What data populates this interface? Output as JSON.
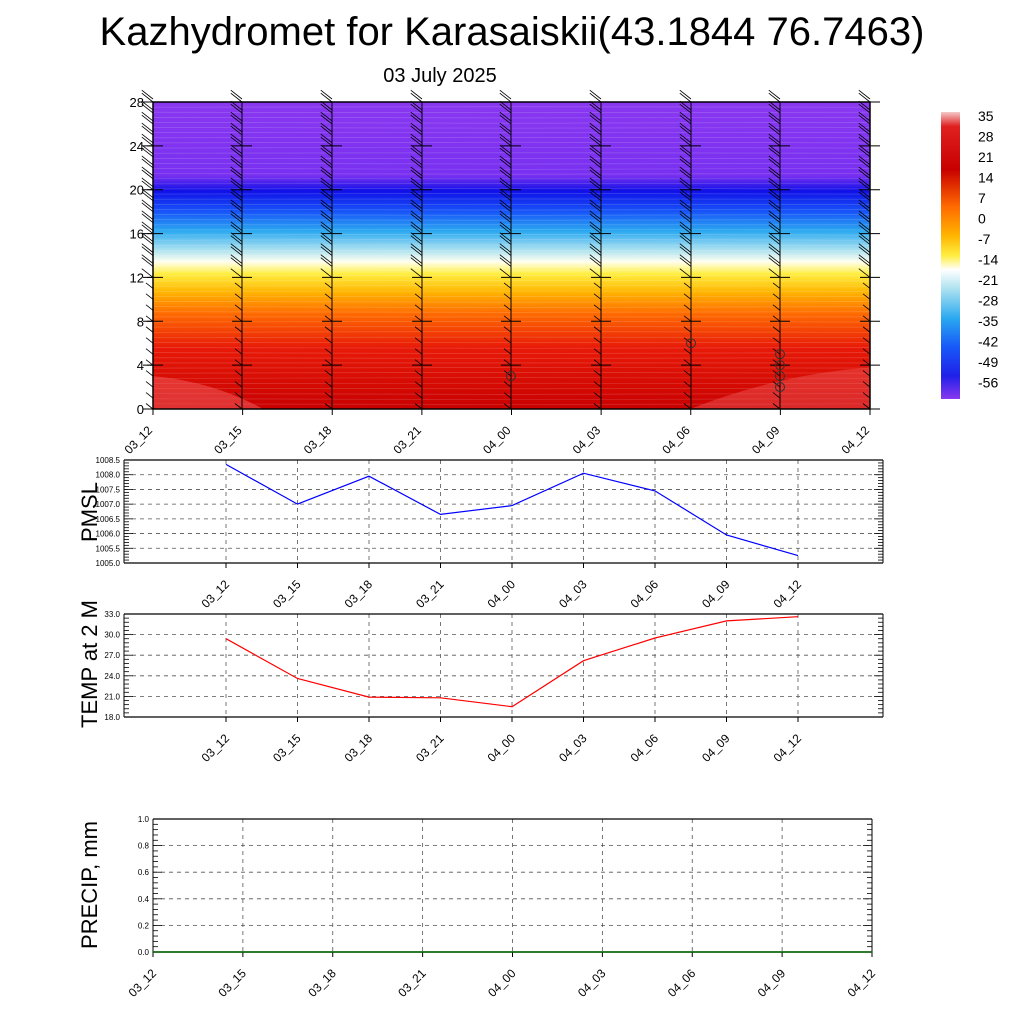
{
  "title": "Kazhydromet for Karasaiskii(43.1844 76.7463)",
  "subtitle": "03 July 2025",
  "chart_data": [
    {
      "type": "heatmap",
      "y": [
        0,
        4,
        8,
        12,
        16,
        20,
        24,
        28
      ],
      "ylim": [
        0,
        28
      ],
      "x": [
        "03_12",
        "03_15",
        "03_18",
        "03_21",
        "04_00",
        "04_03",
        "04_06",
        "04_09",
        "04_12"
      ],
      "colorbar": {
        "labels": [
          "35",
          "28",
          "21",
          "14",
          "7",
          "0",
          "-7",
          "-14",
          "-21",
          "-28",
          "-35",
          "-42",
          "-49",
          "-56"
        ],
        "range": [
          -56,
          35
        ]
      },
      "value_bands": [
        {
          "y_from": 0,
          "y_to": 4,
          "value": 30
        },
        {
          "y_from": 4,
          "y_to": 8,
          "value": 24
        },
        {
          "y_from": 8,
          "y_to": 11,
          "value": 12
        },
        {
          "y_from": 11,
          "y_to": 13.5,
          "value": 0
        },
        {
          "y_from": 13.5,
          "y_to": 15,
          "value": -14
        },
        {
          "y_from": 15,
          "y_to": 17,
          "value": -25
        },
        {
          "y_from": 17,
          "y_to": 19,
          "value": -35
        },
        {
          "y_from": 19,
          "y_to": 21,
          "value": -52
        },
        {
          "y_from": 21,
          "y_to": 22,
          "value": -56
        },
        {
          "y_from": 22,
          "y_to": 28,
          "value": -60
        }
      ],
      "overlay": "wind barbs"
    },
    {
      "type": "line",
      "ylabel": "PMSL",
      "ylim": [
        1005.0,
        1008.5
      ],
      "yticks": [
        "1005.0",
        "1005.5",
        "1006.0",
        "1006.5",
        "1007.0",
        "1007.5",
        "1008.0",
        "1008.5"
      ],
      "x": [
        "03_12",
        "03_15",
        "03_18",
        "03_21",
        "04_00",
        "04_03",
        "04_06",
        "04_09",
        "04_12"
      ],
      "values": [
        1008.35,
        1007.0,
        1007.95,
        1006.65,
        1006.95,
        1008.05,
        1007.45,
        1005.95,
        1005.25
      ],
      "color": "#0000ff",
      "grid": true
    },
    {
      "type": "line",
      "ylabel": "TEMP at 2 M",
      "ylim": [
        18.0,
        33.0
      ],
      "yticks": [
        "18.0",
        "21.0",
        "24.0",
        "27.0",
        "30.0",
        "33.0"
      ],
      "x": [
        "03_12",
        "03_15",
        "03_18",
        "03_21",
        "04_00",
        "04_03",
        "04_06",
        "04_09",
        "04_12"
      ],
      "values": [
        29.4,
        23.6,
        20.9,
        20.8,
        19.5,
        26.2,
        29.5,
        32.0,
        32.6
      ],
      "color": "#ff0000",
      "grid": true
    },
    {
      "type": "line",
      "ylabel": "PRECIP, mm",
      "ylim": [
        0.0,
        1.0
      ],
      "yticks": [
        "0.0",
        "0.2",
        "0.4",
        "0.6",
        "0.8",
        "1.0"
      ],
      "x": [
        "03_12",
        "03_15",
        "03_18",
        "03_21",
        "04_00",
        "04_03",
        "04_06",
        "04_09",
        "04_12"
      ],
      "values": [
        0,
        0,
        0,
        0,
        0,
        0,
        0,
        0,
        0
      ],
      "color": "#006400",
      "grid": true
    }
  ]
}
